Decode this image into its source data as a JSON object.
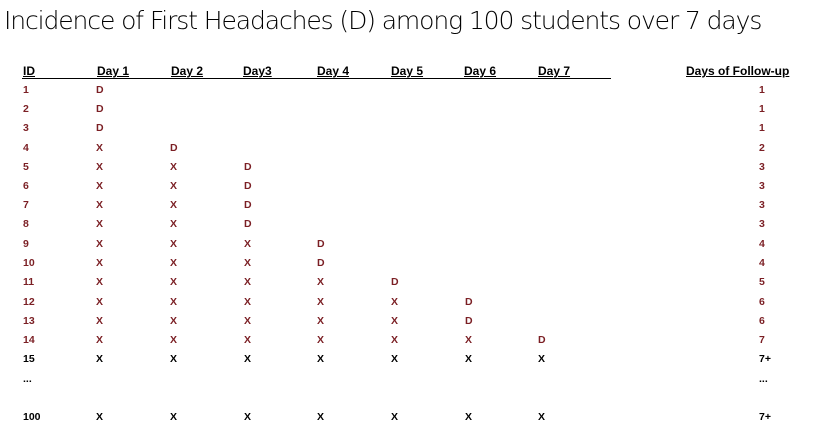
{
  "title": "Incidence of First Headaches  (D) among 100 students over 7 days",
  "headers": {
    "id": "ID",
    "days": [
      "Day 1",
      "Day 2",
      "Day3",
      "Day 4",
      "Day 5",
      "Day 6",
      "Day 7"
    ],
    "followup": "Days of Follow-up"
  },
  "rows": [
    {
      "id": "1",
      "cells": [
        "D",
        "",
        "",
        "",
        "",
        "",
        ""
      ],
      "followup": "1"
    },
    {
      "id": "2",
      "cells": [
        "D",
        "",
        "",
        "",
        "",
        "",
        ""
      ],
      "followup": "1"
    },
    {
      "id": "3",
      "cells": [
        "D",
        "",
        "",
        "",
        "",
        "",
        ""
      ],
      "followup": "1"
    },
    {
      "id": "4",
      "cells": [
        "X",
        "D",
        "",
        "",
        "",
        "",
        ""
      ],
      "followup": "2"
    },
    {
      "id": "5",
      "cells": [
        "X",
        "X",
        "D",
        "",
        "",
        "",
        ""
      ],
      "followup": "3"
    },
    {
      "id": "6",
      "cells": [
        "X",
        "X",
        "D",
        "",
        "",
        "",
        ""
      ],
      "followup": "3"
    },
    {
      "id": "7",
      "cells": [
        "X",
        "X",
        "D",
        "",
        "",
        "",
        ""
      ],
      "followup": "3"
    },
    {
      "id": "8",
      "cells": [
        "X",
        "X",
        "D",
        "",
        "",
        "",
        ""
      ],
      "followup": "3"
    },
    {
      "id": "9",
      "cells": [
        "X",
        "X",
        "X",
        "D",
        "",
        "",
        ""
      ],
      "followup": "4"
    },
    {
      "id": "10",
      "cells": [
        "X",
        "X",
        "X",
        "D",
        "",
        "",
        ""
      ],
      "followup": "4"
    },
    {
      "id": "11",
      "cells": [
        "X",
        "X",
        "X",
        "X",
        "D",
        "",
        ""
      ],
      "followup": "5"
    },
    {
      "id": "12",
      "cells": [
        "X",
        "X",
        "X",
        "X",
        "X",
        "D",
        ""
      ],
      "followup": "6"
    },
    {
      "id": "13",
      "cells": [
        "X",
        "X",
        "X",
        "X",
        "X",
        "D",
        ""
      ],
      "followup": "6"
    },
    {
      "id": "14",
      "cells": [
        "X",
        "X",
        "X",
        "X",
        "X",
        "X",
        "D"
      ],
      "followup": "7"
    },
    {
      "id": "15",
      "cells": [
        "X",
        "X",
        "X",
        "X",
        "X",
        "X",
        "X"
      ],
      "followup": "7+"
    },
    {
      "id": "...",
      "cells": [
        "",
        "",
        "",
        "",
        "",
        "",
        ""
      ],
      "followup": "..."
    },
    {
      "id": "100",
      "cells": [
        "X",
        "X",
        "X",
        "X",
        "X",
        "X",
        "X"
      ],
      "followup": "7+"
    }
  ]
}
